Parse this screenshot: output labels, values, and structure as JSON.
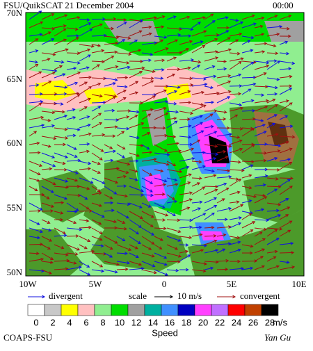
{
  "header": {
    "title": "FSU/QuikSCAT 21 December 2004",
    "time": "00:00"
  },
  "map": {
    "lat_labels": [
      "70N",
      "65N",
      "60N",
      "55N",
      "50N"
    ],
    "lon_labels": [
      "10W",
      "5W",
      "0",
      "5E",
      "10E"
    ]
  },
  "arrow_legend": {
    "divergent": "divergent",
    "scale": "scale",
    "scale_value": "10 m/s",
    "convergent": "convergent",
    "divergent_color": "#1010e0",
    "convergent_color": "#a01010"
  },
  "color_scale": {
    "labels": [
      "0",
      "2",
      "4",
      "6",
      "8",
      "10",
      "12",
      "14",
      "16",
      "18",
      "20",
      "22",
      "24",
      "26",
      "28"
    ],
    "colors": [
      "#ffffff",
      "#c8c8c8",
      "#ffff00",
      "#ffc0c0",
      "#90ee90",
      "#00dd00",
      "#a0a0a0",
      "#00b0a0",
      "#4090ff",
      "#0000c0",
      "#ff40ff",
      "#c070ff",
      "#ff0000",
      "#c04000",
      "#000000"
    ],
    "unit": "m/s",
    "caption": "Speed"
  },
  "footer": {
    "left": "COAPS-FSU",
    "right": "Yan Gu"
  }
}
